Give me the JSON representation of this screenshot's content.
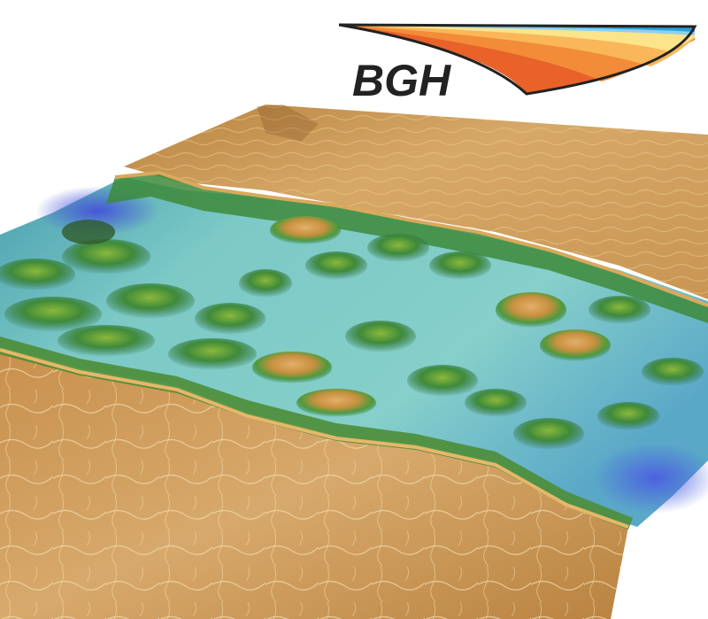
{
  "logo": {
    "text": "BGH",
    "fan_colors": [
      "#e8622a",
      "#f28c38",
      "#f9b75a",
      "#fbe48a",
      "#8fd0ef",
      "#2aa3e0"
    ]
  },
  "terrain": {
    "description_colors": {
      "plateau": "#d4a565",
      "plateau_shadow": "#a8743a",
      "ridge_green": "#3f8a3a",
      "valley_cyan": "#6fc0c0",
      "deep_blue": "#4a5fd0",
      "highlight": "#f5dfb0"
    }
  }
}
